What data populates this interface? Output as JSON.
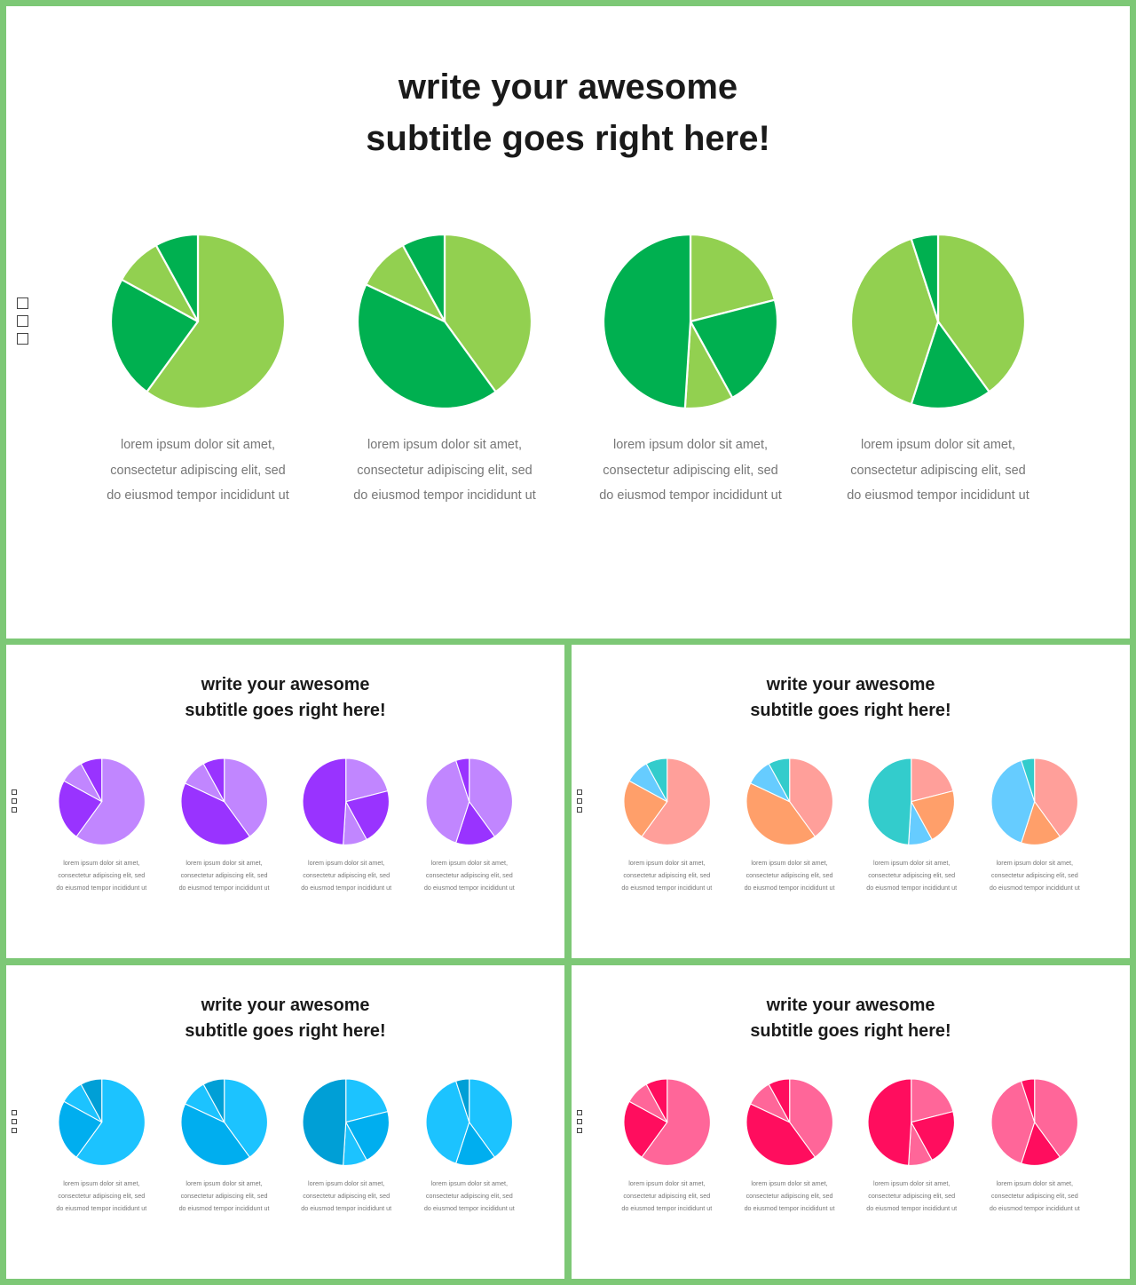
{
  "slides": [
    {
      "title_line1": "write your awesome",
      "title_line2": "subtitle goes right here!",
      "palette": [
        "#92d050",
        "#00b050"
      ],
      "captions": [
        [
          "lorem ipsum dolor sit amet,",
          "consectetur adipiscing elit, sed",
          "do eiusmod tempor incididunt ut"
        ],
        [
          "lorem ipsum dolor sit amet,",
          "consectetur adipiscing elit, sed",
          "do eiusmod tempor incididunt ut"
        ],
        [
          "lorem ipsum dolor sit amet,",
          "consectetur adipiscing elit, sed",
          "do eiusmod tempor incididunt ut"
        ],
        [
          "lorem ipsum dolor sit amet,",
          "consectetur adipiscing elit, sed",
          "do eiusmod tempor incididunt ut"
        ]
      ]
    },
    {
      "title_line1": "write your awesome",
      "title_line2": "subtitle goes right here!",
      "palette": [
        "#c186ff",
        "#9933ff"
      ],
      "captions": [
        [
          "lorem ipsum dolor sit amet,",
          "consectetur adipiscing elit, sed",
          "do eiusmod tempor incididunt ut"
        ],
        [
          "lorem ipsum dolor sit amet,",
          "consectetur adipiscing elit, sed",
          "do eiusmod tempor incididunt ut"
        ],
        [
          "lorem ipsum dolor sit amet,",
          "consectetur adipiscing elit, sed",
          "do eiusmod tempor incididunt ut"
        ],
        [
          "lorem ipsum dolor sit amet,",
          "consectetur adipiscing elit, sed",
          "do eiusmod tempor incididunt ut"
        ]
      ]
    },
    {
      "title_line1": "write your awesome",
      "title_line2": "subtitle goes right here!",
      "palette": [
        "#ff9f9a",
        "#ff9f6a",
        "#66ccff",
        "#33cccc"
      ],
      "captions": [
        [
          "lorem ipsum dolor sit amet,",
          "consectetur adipiscing elit, sed",
          "do eiusmod tempor incididunt ut"
        ],
        [
          "lorem ipsum dolor sit amet,",
          "consectetur adipiscing elit, sed",
          "do eiusmod tempor incididunt ut"
        ],
        [
          "lorem ipsum dolor sit amet,",
          "consectetur adipiscing elit, sed",
          "do eiusmod tempor incididunt ut"
        ],
        [
          "lorem ipsum dolor sit amet,",
          "consectetur adipiscing elit, sed",
          "do eiusmod tempor incididunt ut"
        ]
      ]
    },
    {
      "title_line1": "write your awesome",
      "title_line2": "subtitle goes right here!",
      "palette": [
        "#1cc3ff",
        "#00aeef",
        "#009fd6"
      ],
      "captions": [
        [
          "lorem ipsum dolor sit amet,",
          "consectetur adipiscing elit, sed",
          "do eiusmod tempor incididunt ut"
        ],
        [
          "lorem ipsum dolor sit amet,",
          "consectetur adipiscing elit, sed",
          "do eiusmod tempor incididunt ut"
        ],
        [
          "lorem ipsum dolor sit amet,",
          "consectetur adipiscing elit, sed",
          "do eiusmod tempor incididunt ut"
        ],
        [
          "lorem ipsum dolor sit amet,",
          "consectetur adipiscing elit, sed",
          "do eiusmod tempor incididunt ut"
        ]
      ]
    },
    {
      "title_line1": "write your awesome",
      "title_line2": "subtitle goes right here!",
      "palette": [
        "#ff6699",
        "#ff0d5e"
      ],
      "captions": [
        [
          "lorem ipsum dolor sit amet,",
          "consectetur adipiscing elit, sed",
          "do eiusmod tempor incididunt ut"
        ],
        [
          "lorem ipsum dolor sit amet,",
          "consectetur adipiscing elit, sed",
          "do eiusmod tempor incididunt ut"
        ],
        [
          "lorem ipsum dolor sit amet,",
          "consectetur adipiscing elit, sed",
          "do eiusmod tempor incididunt ut"
        ],
        [
          "lorem ipsum dolor sit amet,",
          "consectetur adipiscing elit, sed",
          "do eiusmod tempor incididunt ut"
        ]
      ]
    }
  ],
  "chart_data": [
    {
      "type": "pie",
      "pies": [
        {
          "values": [
            60,
            23,
            9,
            8
          ],
          "colors": [
            "#92d050",
            "#00b050",
            "#92d050",
            "#00b050"
          ]
        },
        {
          "values": [
            40,
            42,
            10,
            8
          ],
          "colors": [
            "#92d050",
            "#00b050",
            "#92d050",
            "#00b050"
          ]
        },
        {
          "values": [
            21,
            21,
            9,
            49
          ],
          "colors": [
            "#92d050",
            "#00b050",
            "#92d050",
            "#00b050"
          ]
        },
        {
          "values": [
            40,
            15,
            40,
            5
          ],
          "colors": [
            "#92d050",
            "#00b050",
            "#92d050",
            "#00b050"
          ]
        }
      ]
    },
    {
      "type": "pie",
      "pies": [
        {
          "values": [
            60,
            23,
            9,
            8
          ],
          "colors": [
            "#c186ff",
            "#9933ff",
            "#c186ff",
            "#9933ff"
          ]
        },
        {
          "values": [
            40,
            42,
            10,
            8
          ],
          "colors": [
            "#c186ff",
            "#9933ff",
            "#c186ff",
            "#9933ff"
          ]
        },
        {
          "values": [
            21,
            21,
            9,
            49
          ],
          "colors": [
            "#c186ff",
            "#9933ff",
            "#c186ff",
            "#9933ff"
          ]
        },
        {
          "values": [
            40,
            15,
            40,
            5
          ],
          "colors": [
            "#c186ff",
            "#9933ff",
            "#c186ff",
            "#9933ff"
          ]
        }
      ]
    },
    {
      "type": "pie",
      "pies": [
        {
          "values": [
            60,
            23,
            9,
            8
          ],
          "colors": [
            "#ff9f9a",
            "#ff9f6a",
            "#66ccff",
            "#33cccc"
          ]
        },
        {
          "values": [
            40,
            42,
            10,
            8
          ],
          "colors": [
            "#ff9f9a",
            "#ff9f6a",
            "#66ccff",
            "#33cccc"
          ]
        },
        {
          "values": [
            21,
            21,
            9,
            49
          ],
          "colors": [
            "#ff9f9a",
            "#ff9f6a",
            "#66ccff",
            "#33cccc"
          ]
        },
        {
          "values": [
            40,
            15,
            40,
            5
          ],
          "colors": [
            "#ff9f9a",
            "#ff9f6a",
            "#66ccff",
            "#33cccc"
          ]
        }
      ]
    },
    {
      "type": "pie",
      "pies": [
        {
          "values": [
            60,
            23,
            9,
            8
          ],
          "colors": [
            "#1cc3ff",
            "#00aeef",
            "#1cc3ff",
            "#009fd6"
          ]
        },
        {
          "values": [
            40,
            42,
            10,
            8
          ],
          "colors": [
            "#1cc3ff",
            "#00aeef",
            "#1cc3ff",
            "#009fd6"
          ]
        },
        {
          "values": [
            21,
            21,
            9,
            49
          ],
          "colors": [
            "#1cc3ff",
            "#00aeef",
            "#1cc3ff",
            "#009fd6"
          ]
        },
        {
          "values": [
            40,
            15,
            40,
            5
          ],
          "colors": [
            "#1cc3ff",
            "#00aeef",
            "#1cc3ff",
            "#009fd6"
          ]
        }
      ]
    },
    {
      "type": "pie",
      "pies": [
        {
          "values": [
            60,
            23,
            9,
            8
          ],
          "colors": [
            "#ff6699",
            "#ff0d5e",
            "#ff6699",
            "#ff0d5e"
          ]
        },
        {
          "values": [
            40,
            42,
            10,
            8
          ],
          "colors": [
            "#ff6699",
            "#ff0d5e",
            "#ff6699",
            "#ff0d5e"
          ]
        },
        {
          "values": [
            21,
            21,
            9,
            49
          ],
          "colors": [
            "#ff6699",
            "#ff0d5e",
            "#ff6699",
            "#ff0d5e"
          ]
        },
        {
          "values": [
            40,
            15,
            40,
            5
          ],
          "colors": [
            "#ff6699",
            "#ff0d5e",
            "#ff6699",
            "#ff0d5e"
          ]
        }
      ]
    }
  ]
}
